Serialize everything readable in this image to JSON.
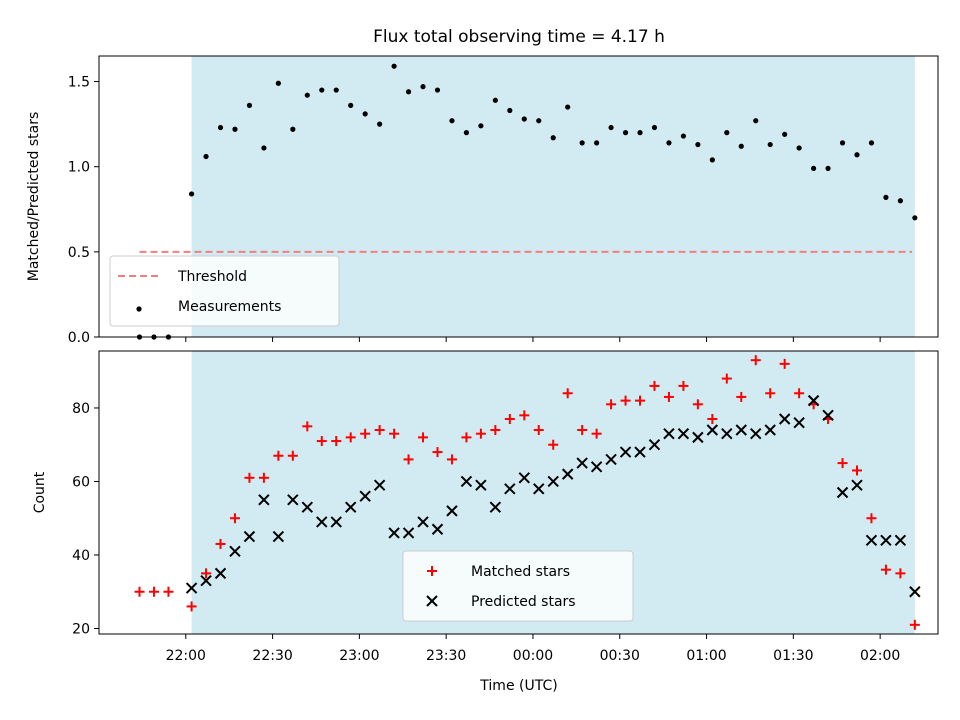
{
  "chart_data": {
    "title": "Flux total observing time = 4.17 h",
    "xlabel": "Time (UTC)",
    "x_unit": "minutes after 21:30 UTC",
    "x_ticks": [
      {
        "t": 30,
        "label": "22:00"
      },
      {
        "t": 60,
        "label": "22:30"
      },
      {
        "t": 90,
        "label": "23:00"
      },
      {
        "t": 120,
        "label": "23:30"
      },
      {
        "t": 150,
        "label": "00:00"
      },
      {
        "t": 180,
        "label": "00:30"
      },
      {
        "t": 210,
        "label": "01:00"
      },
      {
        "t": 240,
        "label": "01:30"
      },
      {
        "t": 270,
        "label": "02:00"
      }
    ],
    "shade_range": [
      32,
      282
    ],
    "shade_color": "#add8e6",
    "panels": [
      {
        "type": "scatter",
        "ylabel": "Matched/Predicted stars",
        "ylim": [
          0,
          1.65
        ],
        "yticks": [
          0.0,
          0.5,
          1.0,
          1.5
        ],
        "ytick_labels": [
          "0.0",
          "0.5",
          "1.0",
          "1.5"
        ],
        "legend_position": "lower-left",
        "threshold": {
          "name": "Threshold",
          "value": 0.5,
          "x_start": 14,
          "x_end": 281,
          "color": "#f08080"
        },
        "series": [
          {
            "name": "Measurements",
            "marker": "dot",
            "color": "#000000",
            "points": [
              [
                14,
                0.0
              ],
              [
                19,
                0.0
              ],
              [
                24,
                0.0
              ],
              [
                32,
                0.84
              ],
              [
                37,
                1.06
              ],
              [
                42,
                1.23
              ],
              [
                47,
                1.22
              ],
              [
                52,
                1.36
              ],
              [
                57,
                1.11
              ],
              [
                62,
                1.49
              ],
              [
                67,
                1.22
              ],
              [
                72,
                1.42
              ],
              [
                77,
                1.45
              ],
              [
                82,
                1.45
              ],
              [
                87,
                1.36
              ],
              [
                92,
                1.31
              ],
              [
                97,
                1.25
              ],
              [
                102,
                1.59
              ],
              [
                107,
                1.44
              ],
              [
                112,
                1.47
              ],
              [
                117,
                1.45
              ],
              [
                122,
                1.27
              ],
              [
                127,
                1.2
              ],
              [
                132,
                1.24
              ],
              [
                137,
                1.39
              ],
              [
                142,
                1.33
              ],
              [
                147,
                1.28
              ],
              [
                152,
                1.27
              ],
              [
                157,
                1.17
              ],
              [
                162,
                1.35
              ],
              [
                167,
                1.14
              ],
              [
                172,
                1.14
              ],
              [
                177,
                1.23
              ],
              [
                182,
                1.2
              ],
              [
                187,
                1.2
              ],
              [
                192,
                1.23
              ],
              [
                197,
                1.14
              ],
              [
                202,
                1.18
              ],
              [
                207,
                1.13
              ],
              [
                212,
                1.04
              ],
              [
                217,
                1.2
              ],
              [
                222,
                1.12
              ],
              [
                227,
                1.27
              ],
              [
                232,
                1.13
              ],
              [
                237,
                1.19
              ],
              [
                242,
                1.11
              ],
              [
                247,
                0.99
              ],
              [
                252,
                0.99
              ],
              [
                257,
                1.14
              ],
              [
                262,
                1.07
              ],
              [
                267,
                1.14
              ],
              [
                272,
                0.82
              ],
              [
                277,
                0.8
              ],
              [
                282,
                0.7
              ]
            ]
          }
        ]
      },
      {
        "type": "scatter",
        "ylabel": "Count",
        "ylim": [
          18.5,
          95.5
        ],
        "yticks": [
          20,
          40,
          60,
          80
        ],
        "ytick_labels": [
          "20",
          "40",
          "60",
          "80"
        ],
        "legend_position": "lower-center",
        "series": [
          {
            "name": "Matched stars",
            "marker": "plus",
            "color": "#ff0000",
            "points": [
              [
                14,
                30
              ],
              [
                19,
                30
              ],
              [
                24,
                30
              ],
              [
                32,
                26
              ],
              [
                37,
                35
              ],
              [
                42,
                43
              ],
              [
                47,
                50
              ],
              [
                52,
                61
              ],
              [
                57,
                61
              ],
              [
                62,
                67
              ],
              [
                67,
                67
              ],
              [
                72,
                75
              ],
              [
                77,
                71
              ],
              [
                82,
                71
              ],
              [
                87,
                72
              ],
              [
                92,
                73
              ],
              [
                97,
                74
              ],
              [
                102,
                73
              ],
              [
                107,
                66
              ],
              [
                112,
                72
              ],
              [
                117,
                68
              ],
              [
                122,
                66
              ],
              [
                127,
                72
              ],
              [
                132,
                73
              ],
              [
                137,
                74
              ],
              [
                142,
                77
              ],
              [
                147,
                78
              ],
              [
                152,
                74
              ],
              [
                157,
                70
              ],
              [
                162,
                84
              ],
              [
                167,
                74
              ],
              [
                172,
                73
              ],
              [
                177,
                81
              ],
              [
                182,
                82
              ],
              [
                187,
                82
              ],
              [
                192,
                86
              ],
              [
                197,
                83
              ],
              [
                202,
                86
              ],
              [
                207,
                81
              ],
              [
                212,
                77
              ],
              [
                217,
                88
              ],
              [
                222,
                83
              ],
              [
                227,
                93
              ],
              [
                232,
                84
              ],
              [
                237,
                92
              ],
              [
                242,
                84
              ],
              [
                247,
                81
              ],
              [
                252,
                77
              ],
              [
                257,
                65
              ],
              [
                262,
                63
              ],
              [
                267,
                50
              ],
              [
                272,
                36
              ],
              [
                277,
                35
              ],
              [
                282,
                21
              ]
            ]
          },
          {
            "name": "Predicted stars",
            "marker": "x",
            "color": "#000000",
            "points": [
              [
                32,
                31
              ],
              [
                37,
                33
              ],
              [
                42,
                35
              ],
              [
                47,
                41
              ],
              [
                52,
                45
              ],
              [
                57,
                55
              ],
              [
                62,
                45
              ],
              [
                67,
                55
              ],
              [
                72,
                53
              ],
              [
                77,
                49
              ],
              [
                82,
                49
              ],
              [
                87,
                53
              ],
              [
                92,
                56
              ],
              [
                97,
                59
              ],
              [
                102,
                46
              ],
              [
                107,
                46
              ],
              [
                112,
                49
              ],
              [
                117,
                47
              ],
              [
                122,
                52
              ],
              [
                127,
                60
              ],
              [
                132,
                59
              ],
              [
                137,
                53
              ],
              [
                142,
                58
              ],
              [
                147,
                61
              ],
              [
                152,
                58
              ],
              [
                157,
                60
              ],
              [
                162,
                62
              ],
              [
                167,
                65
              ],
              [
                172,
                64
              ],
              [
                177,
                66
              ],
              [
                182,
                68
              ],
              [
                187,
                68
              ],
              [
                192,
                70
              ],
              [
                197,
                73
              ],
              [
                202,
                73
              ],
              [
                207,
                72
              ],
              [
                212,
                74
              ],
              [
                217,
                73
              ],
              [
                222,
                74
              ],
              [
                227,
                73
              ],
              [
                232,
                74
              ],
              [
                237,
                77
              ],
              [
                242,
                76
              ],
              [
                247,
                82
              ],
              [
                252,
                78
              ],
              [
                257,
                57
              ],
              [
                262,
                59
              ],
              [
                267,
                44
              ],
              [
                272,
                44
              ],
              [
                277,
                44
              ],
              [
                282,
                30
              ]
            ]
          }
        ]
      }
    ]
  }
}
